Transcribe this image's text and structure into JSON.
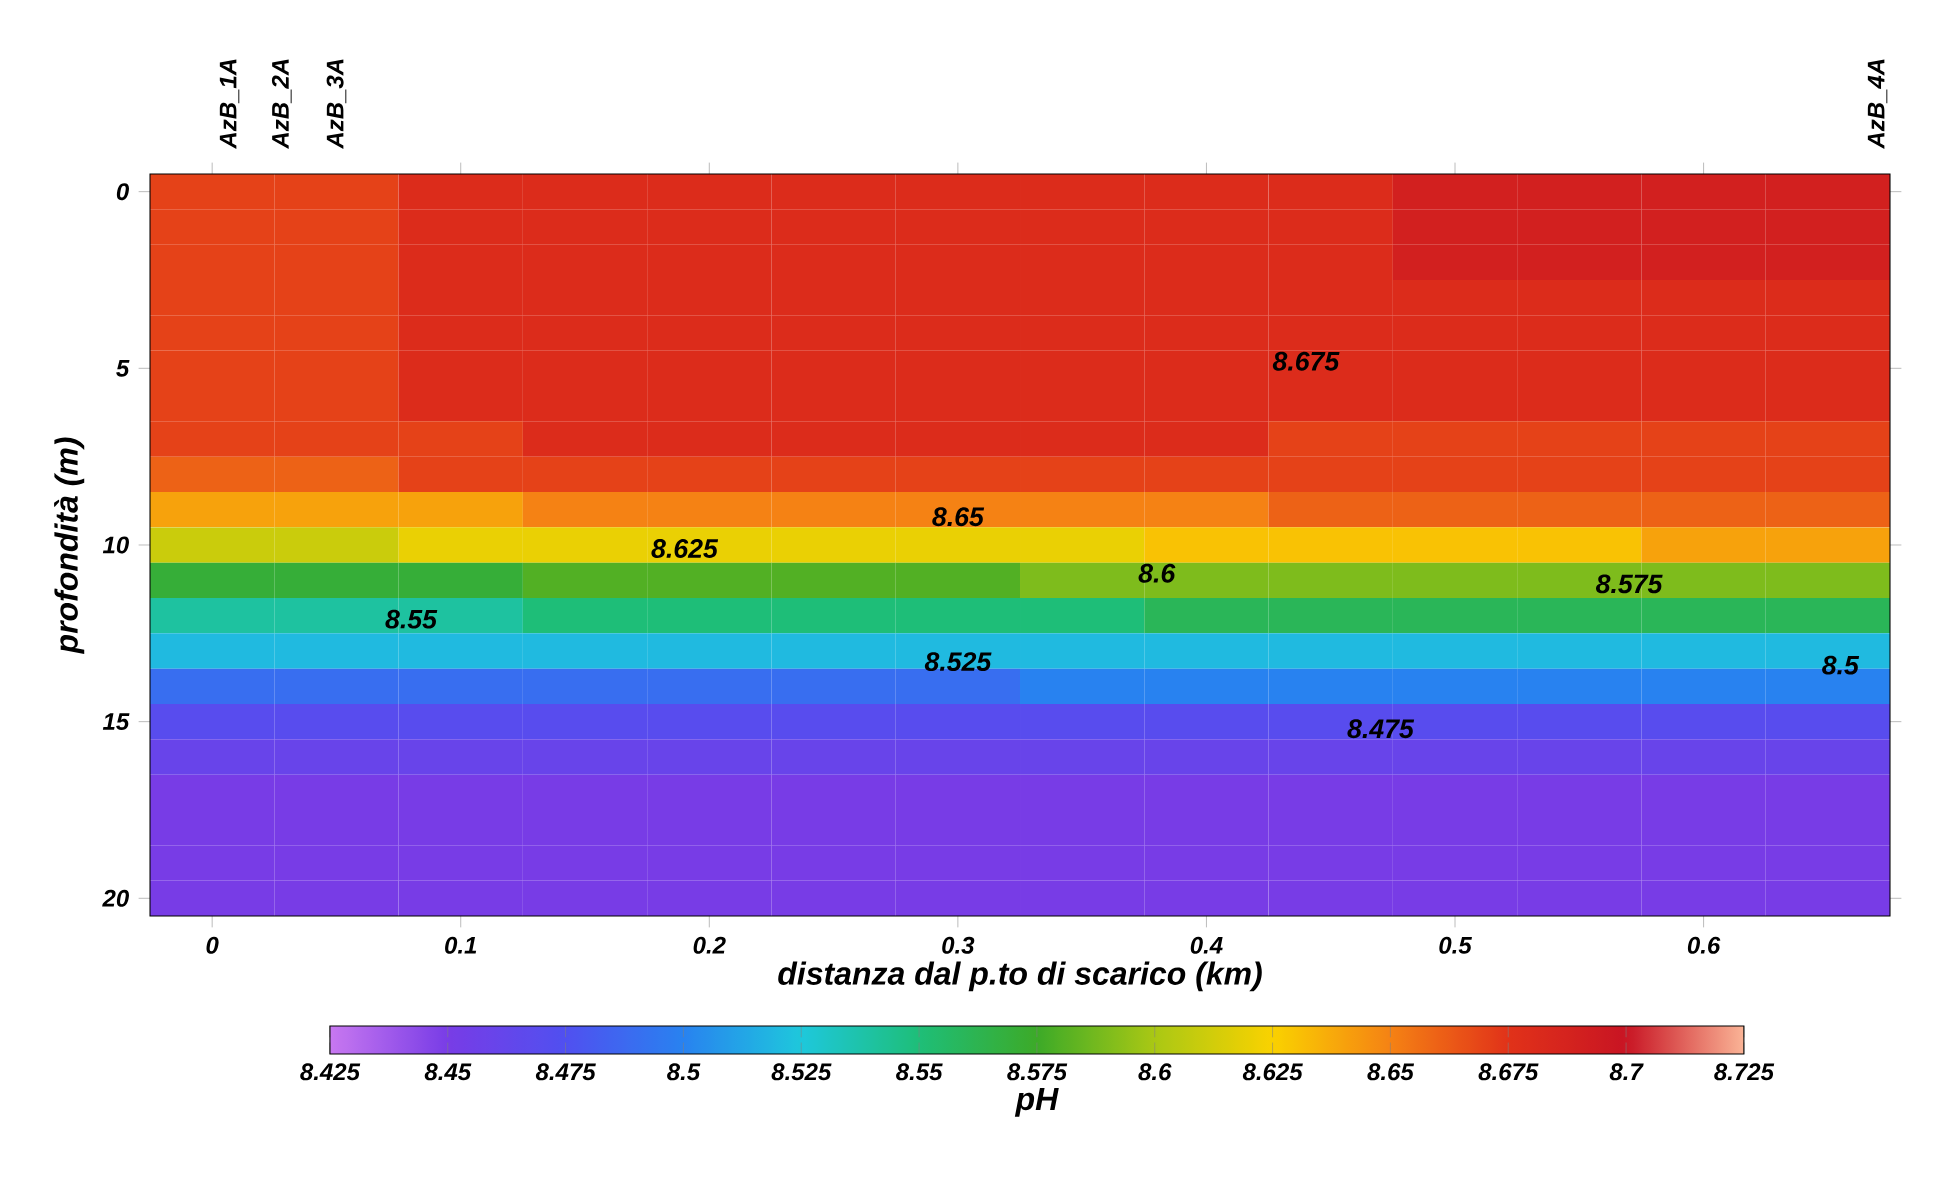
{
  "chart_data": {
    "type": "heatmap",
    "xlabel": "distanza dal p.to di scarico (km)",
    "ylabel": "profondità (m)",
    "clabel": "pH",
    "clim": [
      8.425,
      8.725
    ],
    "cticks": [
      8.425,
      8.45,
      8.475,
      8.5,
      8.525,
      8.55,
      8.575,
      8.6,
      8.625,
      8.65,
      8.675,
      8.7,
      8.725
    ],
    "categories": [
      "0",
      null,
      "0.1",
      null,
      "0.2",
      null,
      "0.3",
      null,
      "0.4",
      null,
      "0.5",
      null,
      "0.6",
      null
    ],
    "y_categories": [
      "0",
      null,
      null,
      null,
      null,
      "5",
      null,
      null,
      null,
      null,
      "10",
      null,
      null,
      null,
      null,
      "15",
      null,
      null,
      null,
      null,
      "20"
    ],
    "cells": [
      [
        8.67,
        8.67,
        8.68,
        8.68,
        8.68,
        8.68,
        8.68,
        8.68,
        8.68,
        8.68,
        8.69,
        8.69,
        8.69,
        8.69
      ],
      [
        8.67,
        8.67,
        8.68,
        8.68,
        8.68,
        8.68,
        8.68,
        8.68,
        8.68,
        8.68,
        8.69,
        8.69,
        8.69,
        8.69
      ],
      [
        8.67,
        8.67,
        8.68,
        8.68,
        8.68,
        8.68,
        8.68,
        8.68,
        8.68,
        8.68,
        8.69,
        8.69,
        8.69,
        8.69
      ],
      [
        8.67,
        8.67,
        8.68,
        8.68,
        8.68,
        8.68,
        8.68,
        8.68,
        8.68,
        8.68,
        8.68,
        8.68,
        8.68,
        8.68
      ],
      [
        8.67,
        8.67,
        8.68,
        8.68,
        8.68,
        8.68,
        8.68,
        8.68,
        8.68,
        8.68,
        8.68,
        8.68,
        8.68,
        8.68
      ],
      [
        8.67,
        8.67,
        8.68,
        8.68,
        8.68,
        8.68,
        8.68,
        8.68,
        8.68,
        8.68,
        8.68,
        8.68,
        8.68,
        8.68
      ],
      [
        8.67,
        8.67,
        8.68,
        8.68,
        8.68,
        8.68,
        8.68,
        8.68,
        8.68,
        8.68,
        8.68,
        8.68,
        8.68,
        8.68
      ],
      [
        8.67,
        8.67,
        8.67,
        8.68,
        8.68,
        8.68,
        8.68,
        8.68,
        8.68,
        8.67,
        8.67,
        8.67,
        8.67,
        8.67
      ],
      [
        8.66,
        8.66,
        8.67,
        8.67,
        8.67,
        8.67,
        8.67,
        8.67,
        8.67,
        8.67,
        8.67,
        8.67,
        8.67,
        8.67
      ],
      [
        8.64,
        8.64,
        8.64,
        8.65,
        8.65,
        8.65,
        8.65,
        8.65,
        8.65,
        8.66,
        8.66,
        8.66,
        8.66,
        8.66
      ],
      [
        8.61,
        8.61,
        8.62,
        8.62,
        8.62,
        8.62,
        8.62,
        8.62,
        8.63,
        8.63,
        8.63,
        8.63,
        8.64,
        8.64
      ],
      [
        8.57,
        8.57,
        8.57,
        8.58,
        8.58,
        8.58,
        8.58,
        8.59,
        8.59,
        8.59,
        8.59,
        8.59,
        8.59,
        8.59
      ],
      [
        8.54,
        8.54,
        8.54,
        8.55,
        8.55,
        8.55,
        8.55,
        8.55,
        8.56,
        8.56,
        8.56,
        8.56,
        8.56,
        8.56
      ],
      [
        8.52,
        8.52,
        8.52,
        8.52,
        8.52,
        8.52,
        8.52,
        8.52,
        8.52,
        8.52,
        8.52,
        8.52,
        8.52,
        8.52
      ],
      [
        8.49,
        8.49,
        8.49,
        8.49,
        8.49,
        8.49,
        8.49,
        8.5,
        8.5,
        8.5,
        8.5,
        8.5,
        8.5,
        8.5
      ],
      [
        8.47,
        8.47,
        8.47,
        8.47,
        8.47,
        8.47,
        8.47,
        8.47,
        8.47,
        8.47,
        8.47,
        8.47,
        8.47,
        8.47
      ],
      [
        8.46,
        8.46,
        8.46,
        8.46,
        8.46,
        8.46,
        8.46,
        8.46,
        8.46,
        8.46,
        8.46,
        8.46,
        8.46,
        8.46
      ],
      [
        8.45,
        8.45,
        8.45,
        8.45,
        8.45,
        8.45,
        8.45,
        8.45,
        8.45,
        8.45,
        8.45,
        8.45,
        8.45,
        8.45
      ],
      [
        8.45,
        8.45,
        8.45,
        8.45,
        8.45,
        8.45,
        8.45,
        8.45,
        8.45,
        8.45,
        8.45,
        8.45,
        8.45,
        8.45
      ],
      [
        8.45,
        8.45,
        8.45,
        8.45,
        8.45,
        8.45,
        8.45,
        8.45,
        8.45,
        8.45,
        8.45,
        8.45,
        8.45,
        8.45
      ],
      [
        8.45,
        8.45,
        8.45,
        8.45,
        8.45,
        8.45,
        8.45,
        8.45,
        8.45,
        8.45,
        8.45,
        8.45,
        8.45,
        8.45
      ]
    ],
    "annotations": [
      "AzB_1A",
      "AzB_2A",
      "AzB_3A",
      "AzB_4A",
      "8.675",
      "8.65",
      "8.625",
      "8.6",
      "8.575",
      "8.55",
      "8.525",
      "8.5",
      "8.475"
    ]
  }
}
